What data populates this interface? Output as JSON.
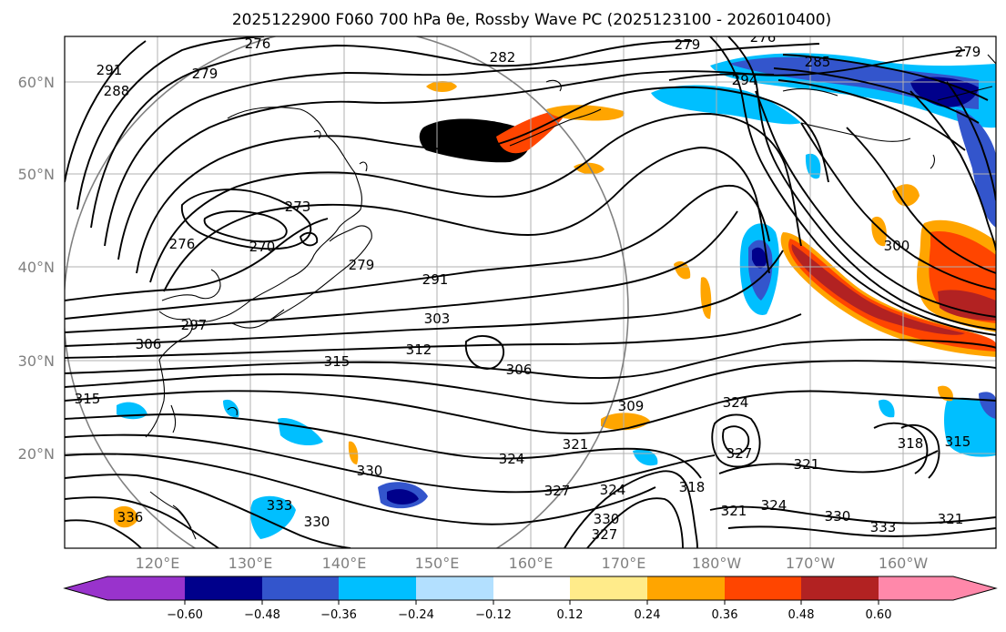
{
  "figure": {
    "title": "2025122900 F060 700 hPa θe, Rossby Wave PC (2025123100 - 2026010400)"
  },
  "colors": {
    "neg_060": "#9933cc",
    "neg_048": "#00008b",
    "neg_036": "#3355cc",
    "neg_024": "#00bfff",
    "neg_012": "#b3e0ff",
    "neutral": "#ffffff",
    "pos_012": "#ffeb8a",
    "pos_024": "#ffa500",
    "pos_036": "#ff4500",
    "pos_048": "#b22222",
    "pos_060": "#ff88aa"
  },
  "chart_data": {
    "type": "map-contour",
    "variable": "700 hPa equivalent potential temperature (theta-e)",
    "shading": "Rossby Wave PC",
    "init": "2025122900",
    "forecast_hour": "F060",
    "period": "2025123100 - 2026010400",
    "lat_range": [
      10,
      65
    ],
    "lon_range": [
      110,
      210
    ],
    "lat_ticks": [
      "20°N",
      "30°N",
      "40°N",
      "50°N",
      "60°N"
    ],
    "lon_ticks": [
      "120°E",
      "130°E",
      "140°E",
      "150°E",
      "160°E",
      "170°E",
      "180°W",
      "170°W",
      "160°W"
    ],
    "colorbar": {
      "ticks": [
        "−0.60",
        "−0.48",
        "−0.36",
        "−0.24",
        "−0.12",
        "0.12",
        "0.24",
        "0.36",
        "0.48",
        "0.60"
      ],
      "levels": [
        -0.6,
        -0.48,
        -0.36,
        -0.24,
        -0.12,
        0.12,
        0.24,
        0.36,
        0.48,
        0.6
      ],
      "extend": "both"
    },
    "contour_labels": [
      "276",
      "279",
      "291",
      "288",
      "282",
      "279",
      "276",
      "285",
      "294",
      "279",
      "273",
      "270",
      "276",
      "279",
      "291",
      "300",
      "297",
      "303",
      "306",
      "312",
      "315",
      "306",
      "315",
      "309",
      "324",
      "321",
      "324",
      "327",
      "327",
      "318",
      "330",
      "336",
      "333",
      "330",
      "327",
      "324",
      "330",
      "321",
      "324",
      "321",
      "330",
      "333",
      "318",
      "315",
      "321"
    ]
  }
}
